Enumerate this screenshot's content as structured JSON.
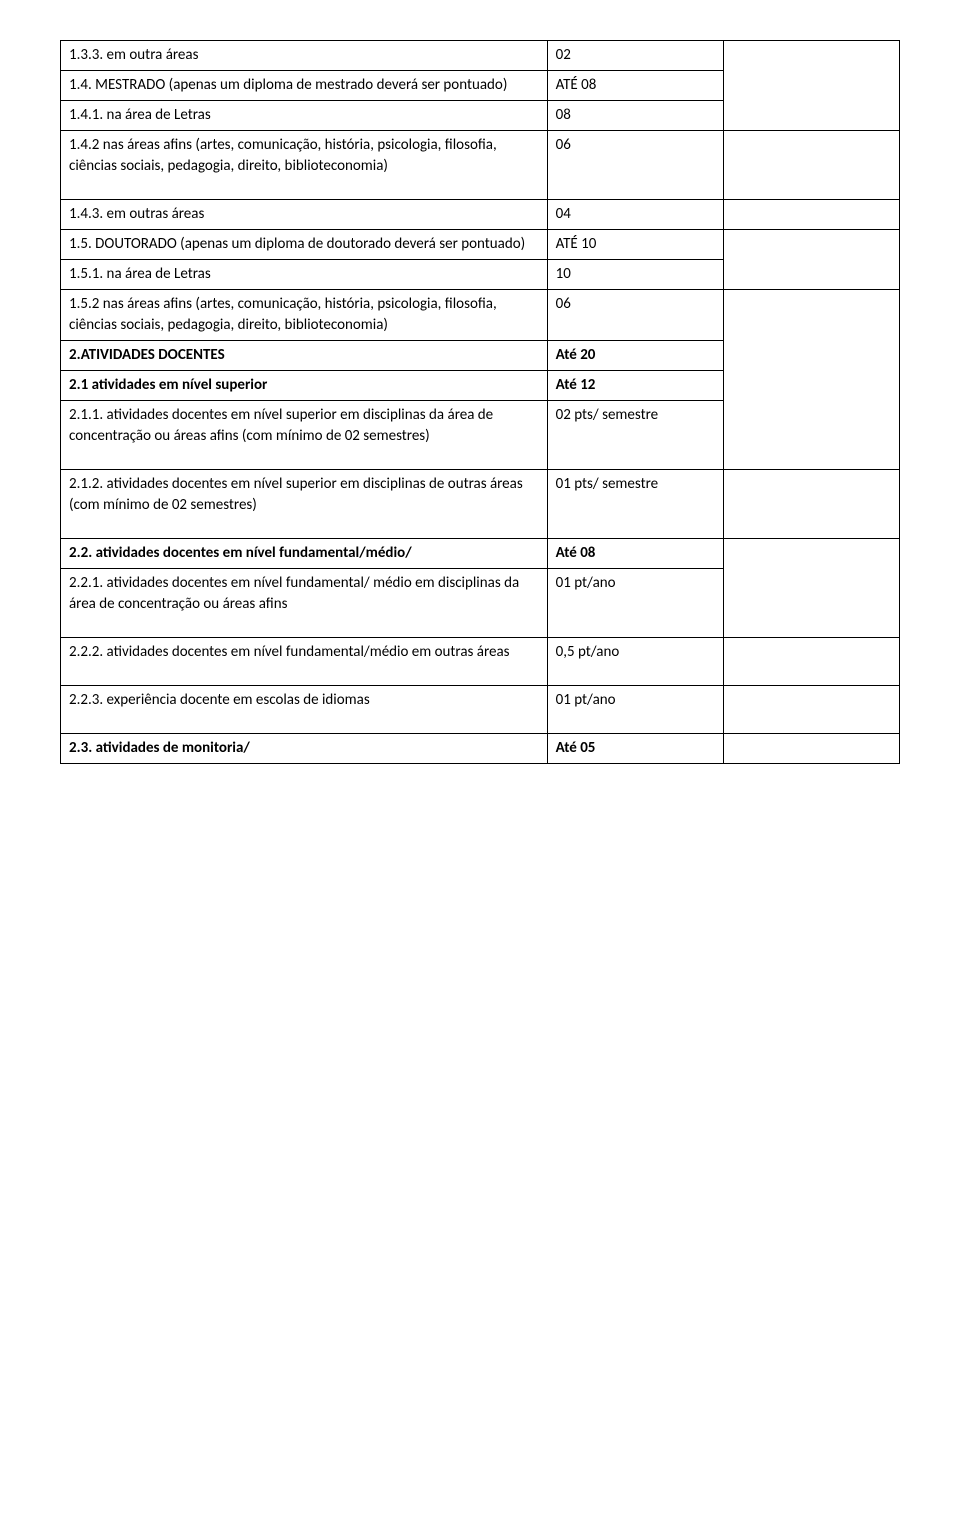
{
  "rows": [
    {
      "c1": "1.3.3. em outra áreas",
      "c2": "02",
      "bold": false,
      "c2rowspan": 1,
      "c3rowspan": 3
    },
    {
      "c1": "1.4. MESTRADO (apenas um diploma de mestrado deverá ser pontuado)",
      "c2": "ATÉ 08",
      "bold": false,
      "justify": true,
      "c2rowspan": 1
    },
    {
      "c1": "1.4.1. na área de Letras",
      "c2": "08",
      "bold": false,
      "c2rowspan": 1
    },
    {
      "c1": "1.4.2 nas áreas afins (artes, comunicação, história, psicologia, filosofia, ciências sociais, pedagogia, direito, biblioteconomia)",
      "c2": "06",
      "bold": false,
      "c2rowspan": 1,
      "c3rowspan": 1,
      "pad": true
    },
    {
      "c1": "1.4.3. em outras áreas",
      "c2": "04",
      "bold": false,
      "c2rowspan": 1,
      "c3rowspan": 1
    },
    {
      "c1": "1.5. DOUTORADO (apenas um diploma de doutorado deverá ser pontuado)",
      "c2": "ATÉ 10",
      "bold": false,
      "justify": true,
      "c2rowspan": 1,
      "c3rowspan": 2
    },
    {
      "c1": "1.5.1. na área de Letras",
      "c2": "10",
      "bold": false,
      "c2rowspan": 1
    },
    {
      "c1": "1.5.2 nas áreas afins (artes, comunicação, história, psicologia, filosofia, ciências sociais, pedagogia, direito, biblioteconomia)",
      "c2": "06",
      "bold": false,
      "c2rowspan": 1,
      "c3rowspan": 4
    },
    {
      "c1": "2.ATIVIDADES DOCENTES",
      "c2": "Até 20",
      "bold": true,
      "c2rowspan": 1
    },
    {
      "c1": "2.1 atividades em nível superior",
      "c2": "Até 12",
      "bold": true,
      "c2rowspan": 1
    },
    {
      "c1": "2.1.1. atividades docentes em nível superior em disciplinas da área de concentração ou áreas afins (com mínimo de 02 semestres)",
      "c2": "02 pts/ semestre",
      "bold": false,
      "c2rowspan": 1,
      "pad": true
    },
    {
      "c1": "2.1.2. atividades docentes em nível superior em disciplinas de outras áreas (com mínimo de 02 semestres)",
      "c2": "01 pts/ semestre",
      "bold": false,
      "c2rowspan": 1,
      "c3rowspan": 1,
      "pad": true
    },
    {
      "c1": "2.2. atividades docentes em nível fundamental/médio/",
      "c2": "Até 08",
      "bold": true,
      "justify": true,
      "c2rowspan": 1,
      "c3rowspan": 2
    },
    {
      "c1": "2.2.1. atividades docentes em nível fundamental/ médio em disciplinas da área de concentração ou áreas afins",
      "c2": "01 pt/ano",
      "bold": false,
      "c2rowspan": 1,
      "pad": true
    },
    {
      "c1": "2.2.2. atividades docentes em nível fundamental/médio em outras áreas",
      "c2": "0,5 pt/ano",
      "bold": false,
      "c2rowspan": 1,
      "c3rowspan": 1,
      "pad": true
    },
    {
      "c1": "2.2.3. experiência docente em escolas de idiomas",
      "c2": "01 pt/ano",
      "bold": false,
      "c2rowspan": 1,
      "c3rowspan": 1,
      "pad": true
    },
    {
      "c1": "2.3. atividades de monitoria/",
      "c2": "Até 05",
      "bold": true,
      "justify": true,
      "c2rowspan": 1,
      "c3rowspan": 1
    }
  ]
}
